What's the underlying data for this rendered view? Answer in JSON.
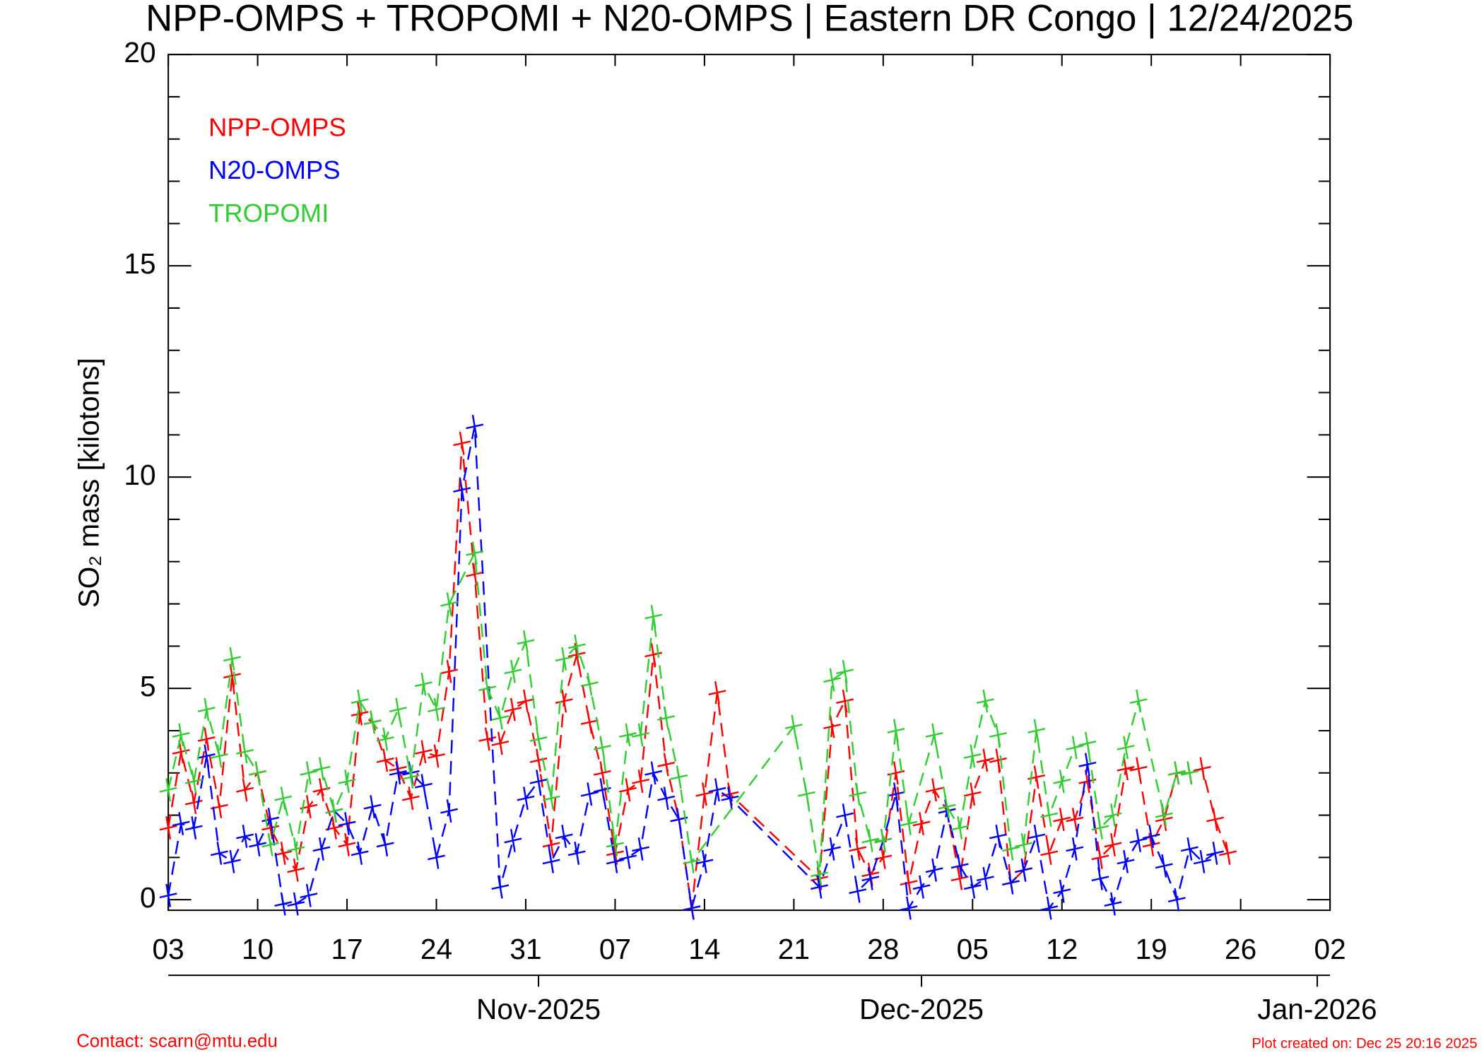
{
  "chart_data": {
    "type": "line",
    "title": "NPP-OMPS + TROPOMI + N20-OMPS | Eastern DR Congo | 12/24/2025",
    "ylabel": "SO₂ mass [kilotons]",
    "ylim": [
      -0.25,
      20
    ],
    "yticks": [
      0,
      5,
      10,
      15,
      20
    ],
    "yminor": [
      1,
      2,
      3,
      4,
      6,
      7,
      8,
      9,
      11,
      12,
      13,
      14,
      16,
      17,
      18,
      19
    ],
    "xlim": [
      "2025-10-03",
      "2026-01-02"
    ],
    "xticks": [
      {
        "value": "2025-10-03",
        "label": "03"
      },
      {
        "value": "2025-10-10",
        "label": "10"
      },
      {
        "value": "2025-10-17",
        "label": "17"
      },
      {
        "value": "2025-10-24",
        "label": "24"
      },
      {
        "value": "2025-10-31",
        "label": "31"
      },
      {
        "value": "2025-11-07",
        "label": "07"
      },
      {
        "value": "2025-11-14",
        "label": "14"
      },
      {
        "value": "2025-11-21",
        "label": "21"
      },
      {
        "value": "2025-11-28",
        "label": "28"
      },
      {
        "value": "2025-12-05",
        "label": "05"
      },
      {
        "value": "2025-12-12",
        "label": "12"
      },
      {
        "value": "2025-12-19",
        "label": "19"
      },
      {
        "value": "2025-12-26",
        "label": "26"
      },
      {
        "value": "2026-01-02",
        "label": "02"
      }
    ],
    "month_ticks": [
      {
        "value": "2025-11-01",
        "label": "Nov-2025"
      },
      {
        "value": "2025-12-01",
        "label": "Dec-2025"
      },
      {
        "value": "2026-01-01",
        "label": "Jan-2026"
      }
    ],
    "legend": "upper left",
    "series": [
      {
        "name": "NPP-OMPS",
        "color": "#ff0000",
        "x": [
          "2025-10-03",
          "2025-10-04",
          "2025-10-05",
          "2025-10-06",
          "2025-10-07",
          "2025-10-08",
          "2025-10-09",
          "2025-10-10",
          "2025-10-11",
          "2025-10-12",
          "2025-10-13",
          "2025-10-14",
          "2025-10-15",
          "2025-10-16",
          "2025-10-17",
          "2025-10-18",
          "2025-10-19",
          "2025-10-20",
          "2025-10-21",
          "2025-10-22",
          "2025-10-23",
          "2025-10-24",
          "2025-10-25",
          "2025-10-26",
          "2025-10-27",
          "2025-10-28",
          "2025-10-29",
          "2025-10-30",
          "2025-10-31",
          "2025-11-01",
          "2025-11-02",
          "2025-11-03",
          "2025-11-04",
          "2025-11-05",
          "2025-11-06",
          "2025-11-07",
          "2025-11-08",
          "2025-11-09",
          "2025-11-10",
          "2025-11-11",
          "2025-11-12",
          "2025-11-13",
          "2025-11-14",
          "2025-11-15",
          "2025-11-16",
          "2025-11-23",
          "2025-11-24",
          "2025-11-25",
          "2025-11-26",
          "2025-11-27",
          "2025-11-28",
          "2025-11-29",
          "2025-11-30",
          "2025-12-01",
          "2025-12-02",
          "2025-12-03",
          "2025-12-04",
          "2025-12-05",
          "2025-12-06",
          "2025-12-07",
          "2025-12-08",
          "2025-12-09",
          "2025-12-10",
          "2025-12-11",
          "2025-12-12",
          "2025-12-13",
          "2025-12-14",
          "2025-12-15",
          "2025-12-16",
          "2025-12-17",
          "2025-12-18",
          "2025-12-19",
          "2025-12-20",
          "2025-12-21",
          "2025-12-22",
          "2025-12-23",
          "2025-12-24",
          "2025-12-25"
        ],
        "values": [
          1.7,
          3.5,
          2.3,
          3.8,
          2.2,
          5.3,
          2.6,
          3.0,
          1.7,
          1.1,
          0.7,
          2.2,
          2.6,
          1.7,
          1.3,
          4.4,
          4.2,
          3.3,
          3.1,
          2.4,
          3.5,
          3.4,
          5.4,
          10.8,
          7.7,
          3.8,
          3.7,
          4.5,
          4.7,
          3.3,
          1.3,
          4.7,
          5.8,
          4.2,
          3.0,
          1.1,
          2.6,
          2.8,
          5.8,
          3.2,
          1.9,
          -0.2,
          2.5,
          4.9,
          2.5,
          0.5,
          4.1,
          4.7,
          1.2,
          0.6,
          1.0,
          3.0,
          0.4,
          1.8,
          2.6,
          2.1,
          0.5,
          2.5,
          3.3,
          3.3,
          0.4,
          0.7,
          2.9,
          1.1,
          1.9,
          1.9,
          2.8,
          1.0,
          1.3,
          3.1,
          3.1,
          1.3,
          1.9,
          3.0,
          3.0,
          3.1,
          1.9,
          1.1
        ]
      },
      {
        "name": "N20-OMPS",
        "color": "#0000ff",
        "x": [
          "2025-10-03",
          "2025-10-04",
          "2025-10-05",
          "2025-10-06",
          "2025-10-07",
          "2025-10-08",
          "2025-10-09",
          "2025-10-10",
          "2025-10-11",
          "2025-10-12",
          "2025-10-13",
          "2025-10-14",
          "2025-10-15",
          "2025-10-16",
          "2025-10-17",
          "2025-10-18",
          "2025-10-19",
          "2025-10-20",
          "2025-10-21",
          "2025-10-22",
          "2025-10-23",
          "2025-10-24",
          "2025-10-25",
          "2025-10-26",
          "2025-10-27",
          "2025-10-29",
          "2025-10-30",
          "2025-10-31",
          "2025-11-01",
          "2025-11-02",
          "2025-11-03",
          "2025-11-04",
          "2025-11-05",
          "2025-11-06",
          "2025-11-07",
          "2025-11-08",
          "2025-11-09",
          "2025-11-10",
          "2025-11-11",
          "2025-11-12",
          "2025-11-13",
          "2025-11-14",
          "2025-11-15",
          "2025-11-16",
          "2025-11-23",
          "2025-11-24",
          "2025-11-25",
          "2025-11-26",
          "2025-11-27",
          "2025-11-28",
          "2025-11-29",
          "2025-11-30",
          "2025-12-01",
          "2025-12-02",
          "2025-12-03",
          "2025-12-04",
          "2025-12-05",
          "2025-12-06",
          "2025-12-07",
          "2025-12-08",
          "2025-12-09",
          "2025-12-10",
          "2025-12-11",
          "2025-12-12",
          "2025-12-13",
          "2025-12-14",
          "2025-12-15",
          "2025-12-16",
          "2025-12-17",
          "2025-12-18",
          "2025-12-19",
          "2025-12-20",
          "2025-12-21",
          "2025-12-22",
          "2025-12-23",
          "2025-12-24"
        ],
        "values": [
          0.1,
          1.8,
          1.7,
          3.4,
          1.1,
          0.9,
          1.5,
          1.3,
          1.9,
          -0.1,
          -0.1,
          0.1,
          1.2,
          2.1,
          1.8,
          1.1,
          2.2,
          1.3,
          3.0,
          3.0,
          2.7,
          1.0,
          2.1,
          9.7,
          11.2,
          0.3,
          1.4,
          2.4,
          2.8,
          0.9,
          1.5,
          1.1,
          2.5,
          2.6,
          0.9,
          1.0,
          1.2,
          3.0,
          2.4,
          1.9,
          -0.2,
          0.9,
          2.6,
          2.4,
          0.3,
          1.2,
          2.0,
          0.2,
          0.5,
          1.4,
          2.5,
          -0.2,
          0.3,
          0.7,
          2.1,
          0.8,
          0.3,
          0.5,
          1.5,
          0.4,
          0.7,
          1.5,
          -0.2,
          0.2,
          1.2,
          3.2,
          0.5,
          -0.1,
          0.9,
          1.4,
          1.5,
          0.8,
          0.0,
          1.2,
          0.9,
          1.1
        ]
      },
      {
        "name": "TROPOMI",
        "color": "#33cc33",
        "x": [
          "2025-10-03",
          "2025-10-04",
          "2025-10-05",
          "2025-10-06",
          "2025-10-07",
          "2025-10-08",
          "2025-10-09",
          "2025-10-10",
          "2025-10-11",
          "2025-10-12",
          "2025-10-13",
          "2025-10-14",
          "2025-10-15",
          "2025-10-16",
          "2025-10-17",
          "2025-10-18",
          "2025-10-19",
          "2025-10-20",
          "2025-10-21",
          "2025-10-22",
          "2025-10-23",
          "2025-10-24",
          "2025-10-25",
          "2025-10-27",
          "2025-10-28",
          "2025-10-29",
          "2025-10-30",
          "2025-10-31",
          "2025-11-01",
          "2025-11-02",
          "2025-11-03",
          "2025-11-04",
          "2025-11-05",
          "2025-11-06",
          "2025-11-07",
          "2025-11-08",
          "2025-11-09",
          "2025-11-10",
          "2025-11-11",
          "2025-11-12",
          "2025-11-13",
          "2025-11-21",
          "2025-11-22",
          "2025-11-23",
          "2025-11-24",
          "2025-11-25",
          "2025-11-26",
          "2025-11-27",
          "2025-11-28",
          "2025-11-29",
          "2025-11-30",
          "2025-12-02",
          "2025-12-03",
          "2025-12-04",
          "2025-12-05",
          "2025-12-06",
          "2025-12-07",
          "2025-12-08",
          "2025-12-09",
          "2025-12-10",
          "2025-12-11",
          "2025-12-12",
          "2025-12-13",
          "2025-12-14",
          "2025-12-15",
          "2025-12-16",
          "2025-12-17",
          "2025-12-18",
          "2025-12-20",
          "2025-12-21",
          "2025-12-22"
        ],
        "values": [
          2.6,
          3.9,
          2.8,
          4.5,
          3.4,
          5.7,
          3.5,
          3.0,
          1.3,
          2.4,
          1.2,
          3.0,
          3.1,
          2.1,
          2.8,
          4.7,
          4.2,
          3.8,
          4.5,
          2.9,
          5.1,
          4.5,
          7.0,
          8.2,
          5.0,
          4.3,
          5.4,
          6.1,
          3.8,
          2.4,
          5.7,
          6.0,
          5.1,
          3.6,
          1.3,
          3.9,
          3.9,
          6.7,
          4.3,
          2.9,
          0.9,
          4.1,
          2.5,
          0.6,
          5.2,
          5.4,
          2.5,
          1.4,
          1.4,
          4.0,
          1.8,
          3.9,
          2.2,
          1.7,
          3.4,
          4.7,
          3.9,
          1.2,
          1.3,
          4.0,
          2.0,
          2.8,
          3.6,
          3.7,
          1.7,
          2.0,
          3.6,
          4.7,
          2.0,
          3.0,
          3.0
        ]
      }
    ],
    "footer_left": "Contact: scarn@mtu.edu",
    "footer_right": "Plot created on: Dec 25 20:16 2025"
  }
}
